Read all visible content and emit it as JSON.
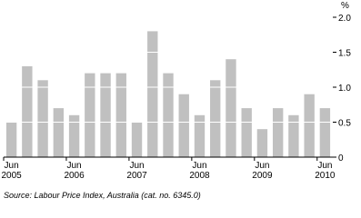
{
  "chart_data": {
    "type": "bar",
    "y_label": "%",
    "categories": [
      "Jun 2005",
      null,
      null,
      null,
      "Jun 2006",
      null,
      null,
      null,
      "Jun 2007",
      null,
      null,
      null,
      "Jun 2008",
      null,
      null,
      null,
      "Jun 2009",
      null,
      null,
      null,
      "Jun 2010"
    ],
    "values": [
      0.5,
      1.3,
      1.1,
      0.7,
      0.6,
      1.2,
      1.2,
      1.2,
      0.5,
      1.8,
      1.2,
      0.9,
      0.6,
      1.1,
      1.4,
      0.7,
      0.4,
      0.7,
      0.6,
      0.9,
      0.7
    ],
    "color": "#c0c0c0",
    "ylim": [
      0,
      2
    ],
    "yticks": [
      0,
      0.5,
      {
        "value": 1,
        "label": "1.0"
      },
      1.5,
      {
        "value": 2,
        "label": "2.0"
      }
    ],
    "grid": true,
    "source": "Source: Labour Price Index, Australia (cat. no. 6345.0)"
  }
}
